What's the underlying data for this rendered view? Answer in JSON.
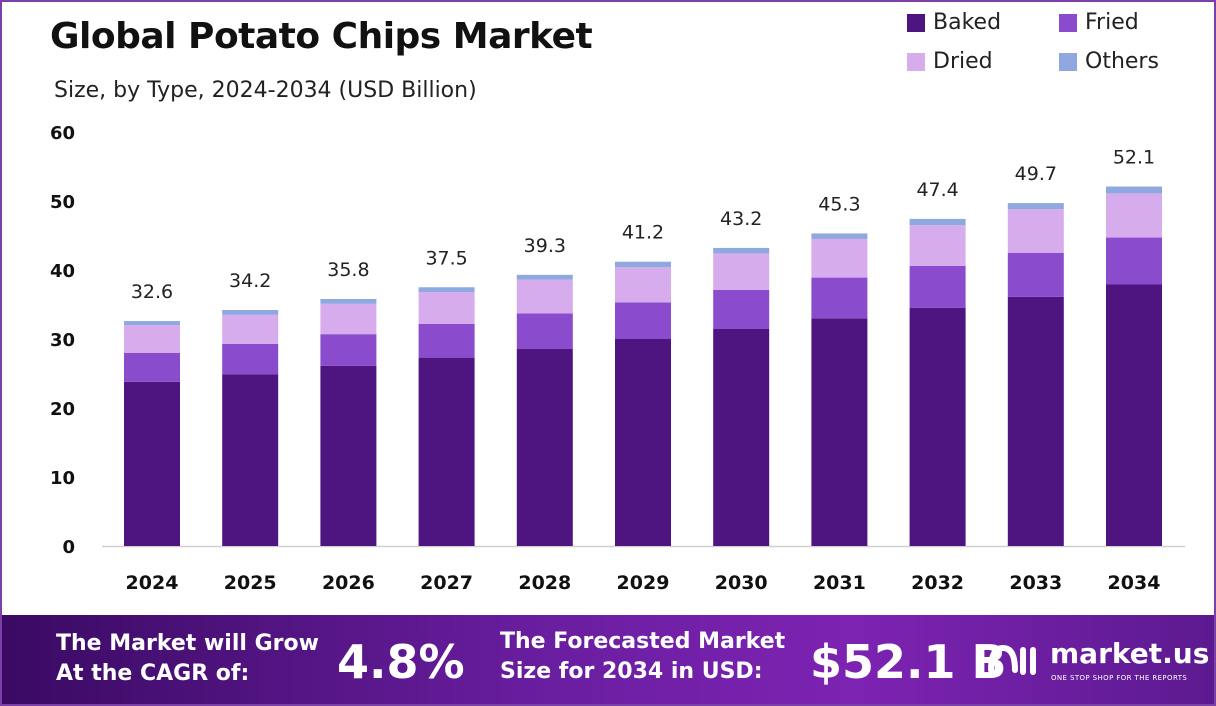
{
  "header": {
    "title": "Global Potato Chips Market",
    "subtitle": "Size, by Type, 2024-2034 (USD Billion)"
  },
  "colors": {
    "Baked": "#4e1580",
    "Fried": "#8a4ccc",
    "Dried": "#d7acec",
    "Others": "#8fa8e0"
  },
  "chart_data": {
    "type": "bar",
    "stacked": true,
    "title": "Global Potato Chips Market",
    "subtitle": "Size, by Type, 2024-2034 (USD Billion)",
    "xlabel": "",
    "ylabel": "",
    "categories": [
      "2024",
      "2025",
      "2026",
      "2027",
      "2028",
      "2029",
      "2030",
      "2031",
      "2032",
      "2033",
      "2034"
    ],
    "series": [
      {
        "name": "Baked",
        "values": [
          23.8,
          24.9,
          26.1,
          27.3,
          28.6,
          30.0,
          31.5,
          33.0,
          34.5,
          36.1,
          37.9
        ]
      },
      {
        "name": "Fried",
        "values": [
          4.2,
          4.4,
          4.6,
          4.9,
          5.1,
          5.3,
          5.6,
          5.9,
          6.1,
          6.4,
          6.8
        ]
      },
      {
        "name": "Dried",
        "values": [
          4.0,
          4.2,
          4.4,
          4.6,
          4.9,
          5.1,
          5.3,
          5.6,
          5.9,
          6.3,
          6.4
        ]
      },
      {
        "name": "Others",
        "values": [
          0.6,
          0.7,
          0.7,
          0.7,
          0.7,
          0.8,
          0.8,
          0.8,
          0.9,
          0.9,
          1.0
        ]
      }
    ],
    "totals": [
      32.6,
      34.2,
      35.8,
      37.5,
      39.3,
      41.2,
      43.2,
      45.3,
      47.4,
      49.7,
      52.1
    ],
    "total_labels": [
      "32.6",
      "34.2",
      "35.8",
      "37.5",
      "39.3",
      "41.2",
      "43.2",
      "45.3",
      "47.4",
      "49.7",
      "52.1"
    ],
    "ylim": [
      0,
      60
    ],
    "yticks": [
      0,
      10,
      20,
      30,
      40,
      50,
      60
    ],
    "legend": [
      "Baked",
      "Fried",
      "Dried",
      "Others"
    ],
    "legend_position": "top-right",
    "grid": false
  },
  "footer": {
    "cagr_text_line1": "The Market will Grow",
    "cagr_text_line2": "At the CAGR of:",
    "cagr_value": "4.8%",
    "forecast_text_line1": "The Forecasted Market",
    "forecast_text_line2": "Size for 2034 in USD:",
    "forecast_value": "$52.1 B",
    "brand_name": "market.us",
    "brand_tagline": "ONE STOP SHOP FOR THE REPORTS"
  }
}
